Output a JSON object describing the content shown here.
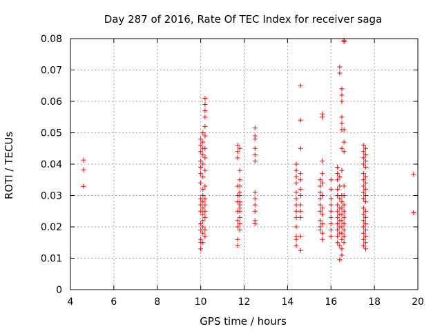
{
  "chart_data": {
    "type": "scatter",
    "title": "Day 287 of 2016, Rate Of TEC Index for receiver saga",
    "xlabel": "GPS time / hours",
    "ylabel": "ROTI / TECUs",
    "xlim": [
      4,
      20
    ],
    "ylim": [
      0,
      0.08
    ],
    "xticks": [
      4,
      6,
      8,
      10,
      12,
      14,
      16,
      18,
      20
    ],
    "yticks": [
      0,
      0.01,
      0.02,
      0.03,
      0.04,
      0.05,
      0.06,
      0.07,
      0.08
    ],
    "xtick_labels": [
      "4",
      "6",
      "8",
      "10",
      "12",
      "14",
      "16",
      "18",
      "20"
    ],
    "ytick_labels": [
      "0",
      "0.01",
      "0.02",
      "0.03",
      "0.04",
      "0.05",
      "0.06",
      "0.07",
      "0.08"
    ],
    "grid": true,
    "marker": "+",
    "marker_color": "#ff0000",
    "series": [
      {
        "name": "ROTI",
        "points": [
          [
            4.6,
            0.0413
          ],
          [
            4.6,
            0.0382
          ],
          [
            4.6,
            0.0329
          ],
          [
            10.0,
            0.048
          ],
          [
            10.0,
            0.046
          ],
          [
            10.0,
            0.044
          ],
          [
            10.0,
            0.041
          ],
          [
            10.0,
            0.039
          ],
          [
            10.0,
            0.037
          ],
          [
            10.0,
            0.034
          ],
          [
            10.0,
            0.029
          ],
          [
            10.0,
            0.027
          ],
          [
            10.0,
            0.025
          ],
          [
            10.0,
            0.021
          ],
          [
            10.0,
            0.019
          ],
          [
            10.0,
            0.016
          ],
          [
            10.0,
            0.015
          ],
          [
            10.0,
            0.013
          ],
          [
            10.1,
            0.05
          ],
          [
            10.1,
            0.047
          ],
          [
            10.1,
            0.045
          ],
          [
            10.1,
            0.043
          ],
          [
            10.1,
            0.04
          ],
          [
            10.1,
            0.036
          ],
          [
            10.1,
            0.032
          ],
          [
            10.1,
            0.03
          ],
          [
            10.1,
            0.028
          ],
          [
            10.1,
            0.026
          ],
          [
            10.1,
            0.024
          ],
          [
            10.1,
            0.022
          ],
          [
            10.1,
            0.02
          ],
          [
            10.1,
            0.018
          ],
          [
            10.1,
            0.015
          ],
          [
            10.2,
            0.061
          ],
          [
            10.2,
            0.059
          ],
          [
            10.2,
            0.057
          ],
          [
            10.2,
            0.055
          ],
          [
            10.2,
            0.052
          ],
          [
            10.2,
            0.049
          ],
          [
            10.2,
            0.045
          ],
          [
            10.2,
            0.042
          ],
          [
            10.2,
            0.038
          ],
          [
            10.2,
            0.033
          ],
          [
            10.2,
            0.029
          ],
          [
            10.2,
            0.027
          ],
          [
            10.2,
            0.025
          ],
          [
            10.2,
            0.023
          ],
          [
            10.2,
            0.019
          ],
          [
            10.2,
            0.017
          ],
          [
            11.7,
            0.046
          ],
          [
            11.7,
            0.044
          ],
          [
            11.7,
            0.042
          ],
          [
            11.7,
            0.033
          ],
          [
            11.7,
            0.03
          ],
          [
            11.7,
            0.028
          ],
          [
            11.7,
            0.025
          ],
          [
            11.7,
            0.022
          ],
          [
            11.7,
            0.02
          ],
          [
            11.7,
            0.016
          ],
          [
            11.7,
            0.014
          ],
          [
            11.8,
            0.045
          ],
          [
            11.8,
            0.038
          ],
          [
            11.8,
            0.035
          ],
          [
            11.8,
            0.033
          ],
          [
            11.8,
            0.031
          ],
          [
            11.8,
            0.03
          ],
          [
            11.8,
            0.028
          ],
          [
            11.8,
            0.027
          ],
          [
            11.8,
            0.026
          ],
          [
            11.8,
            0.025
          ],
          [
            11.8,
            0.023
          ],
          [
            11.8,
            0.021
          ],
          [
            11.8,
            0.019
          ],
          [
            12.5,
            0.0515
          ],
          [
            12.5,
            0.049
          ],
          [
            12.5,
            0.048
          ],
          [
            12.5,
            0.045
          ],
          [
            12.5,
            0.043
          ],
          [
            12.5,
            0.041
          ],
          [
            12.5,
            0.031
          ],
          [
            12.5,
            0.029
          ],
          [
            12.5,
            0.027
          ],
          [
            12.5,
            0.025
          ],
          [
            12.5,
            0.022
          ],
          [
            12.5,
            0.021
          ],
          [
            14.4,
            0.04
          ],
          [
            14.4,
            0.038
          ],
          [
            14.4,
            0.036
          ],
          [
            14.4,
            0.034
          ],
          [
            14.4,
            0.031
          ],
          [
            14.4,
            0.029
          ],
          [
            14.4,
            0.027
          ],
          [
            14.4,
            0.025
          ],
          [
            14.4,
            0.023
          ],
          [
            14.4,
            0.02
          ],
          [
            14.4,
            0.017
          ],
          [
            14.4,
            0.016
          ],
          [
            14.4,
            0.014
          ],
          [
            14.6,
            0.065
          ],
          [
            14.6,
            0.054
          ],
          [
            14.6,
            0.045
          ],
          [
            14.6,
            0.037
          ],
          [
            14.6,
            0.035
          ],
          [
            14.6,
            0.032
          ],
          [
            14.6,
            0.03
          ],
          [
            14.6,
            0.027
          ],
          [
            14.6,
            0.025
          ],
          [
            14.6,
            0.023
          ],
          [
            14.6,
            0.017
          ],
          [
            14.6,
            0.0125
          ],
          [
            15.5,
            0.035
          ],
          [
            15.5,
            0.033
          ],
          [
            15.5,
            0.031
          ],
          [
            15.5,
            0.029
          ],
          [
            15.5,
            0.027
          ],
          [
            15.5,
            0.025
          ],
          [
            15.5,
            0.022
          ],
          [
            15.5,
            0.02
          ],
          [
            15.5,
            0.019
          ],
          [
            15.6,
            0.056
          ],
          [
            15.6,
            0.055
          ],
          [
            15.6,
            0.041
          ],
          [
            15.6,
            0.037
          ],
          [
            15.6,
            0.034
          ],
          [
            15.6,
            0.03
          ],
          [
            15.6,
            0.026
          ],
          [
            15.6,
            0.024
          ],
          [
            15.6,
            0.021
          ],
          [
            15.6,
            0.018
          ],
          [
            15.6,
            0.016
          ],
          [
            16.0,
            0.035
          ],
          [
            16.0,
            0.032
          ],
          [
            16.0,
            0.029
          ],
          [
            16.0,
            0.027
          ],
          [
            16.0,
            0.025
          ],
          [
            16.0,
            0.023
          ],
          [
            16.0,
            0.021
          ],
          [
            16.0,
            0.019
          ],
          [
            16.0,
            0.017
          ],
          [
            16.3,
            0.039
          ],
          [
            16.3,
            0.037
          ],
          [
            16.3,
            0.035
          ],
          [
            16.3,
            0.032
          ],
          [
            16.3,
            0.03
          ],
          [
            16.3,
            0.027
          ],
          [
            16.3,
            0.025
          ],
          [
            16.3,
            0.023
          ],
          [
            16.3,
            0.021
          ],
          [
            16.3,
            0.019
          ],
          [
            16.3,
            0.017
          ],
          [
            16.3,
            0.015
          ],
          [
            16.4,
            0.071
          ],
          [
            16.4,
            0.069
          ],
          [
            16.4,
            0.036
          ],
          [
            16.4,
            0.033
          ],
          [
            16.4,
            0.029
          ],
          [
            16.4,
            0.026
          ],
          [
            16.4,
            0.024
          ],
          [
            16.4,
            0.022
          ],
          [
            16.4,
            0.02
          ],
          [
            16.4,
            0.018
          ],
          [
            16.4,
            0.014
          ],
          [
            16.4,
            0.0095
          ],
          [
            16.5,
            0.064
          ],
          [
            16.5,
            0.062
          ],
          [
            16.5,
            0.06
          ],
          [
            16.5,
            0.055
          ],
          [
            16.5,
            0.053
          ],
          [
            16.5,
            0.051
          ],
          [
            16.5,
            0.045
          ],
          [
            16.5,
            0.038
          ],
          [
            16.5,
            0.03
          ],
          [
            16.5,
            0.028
          ],
          [
            16.5,
            0.026
          ],
          [
            16.5,
            0.024
          ],
          [
            16.5,
            0.022
          ],
          [
            16.5,
            0.02
          ],
          [
            16.5,
            0.018
          ],
          [
            16.5,
            0.016
          ],
          [
            16.5,
            0.013
          ],
          [
            16.5,
            0.011
          ],
          [
            16.6,
            0.0795
          ],
          [
            16.6,
            0.079
          ],
          [
            16.6,
            0.051
          ],
          [
            16.6,
            0.047
          ],
          [
            16.6,
            0.044
          ],
          [
            16.6,
            0.033
          ],
          [
            16.6,
            0.03
          ],
          [
            16.6,
            0.027
          ],
          [
            16.6,
            0.025
          ],
          [
            16.6,
            0.023
          ],
          [
            16.6,
            0.021
          ],
          [
            16.6,
            0.019
          ],
          [
            16.6,
            0.017
          ],
          [
            16.6,
            0.015
          ],
          [
            17.5,
            0.046
          ],
          [
            17.5,
            0.044
          ],
          [
            17.5,
            0.042
          ],
          [
            17.5,
            0.04
          ],
          [
            17.5,
            0.037
          ],
          [
            17.5,
            0.035
          ],
          [
            17.5,
            0.033
          ],
          [
            17.5,
            0.031
          ],
          [
            17.5,
            0.029
          ],
          [
            17.5,
            0.026
          ],
          [
            17.5,
            0.024
          ],
          [
            17.5,
            0.022
          ],
          [
            17.5,
            0.02
          ],
          [
            17.5,
            0.018
          ],
          [
            17.5,
            0.016
          ],
          [
            17.5,
            0.014
          ],
          [
            17.6,
            0.045
          ],
          [
            17.6,
            0.043
          ],
          [
            17.6,
            0.041
          ],
          [
            17.6,
            0.039
          ],
          [
            17.6,
            0.036
          ],
          [
            17.6,
            0.034
          ],
          [
            17.6,
            0.032
          ],
          [
            17.6,
            0.03
          ],
          [
            17.6,
            0.028
          ],
          [
            17.6,
            0.025
          ],
          [
            17.6,
            0.023
          ],
          [
            17.6,
            0.021
          ],
          [
            17.6,
            0.019
          ],
          [
            17.6,
            0.017
          ],
          [
            17.6,
            0.015
          ],
          [
            17.6,
            0.013
          ],
          [
            19.8,
            0.0367
          ],
          [
            19.8,
            0.0245
          ]
        ]
      }
    ]
  }
}
